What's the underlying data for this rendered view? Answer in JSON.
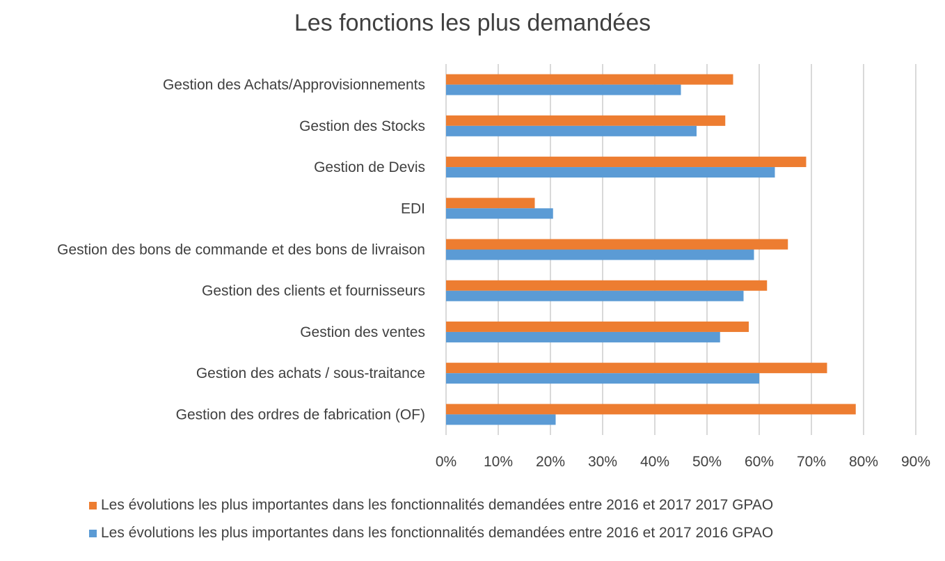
{
  "chart_data": {
    "type": "bar",
    "orientation": "horizontal",
    "title": "Les fonctions les plus demandées",
    "categories": [
      "Gestion des Achats/Approvisionnements",
      "Gestion des Stocks",
      "Gestion de Devis",
      "EDI",
      "Gestion des bons de commande et des bons de livraison",
      "Gestion des clients et fournisseurs",
      "Gestion des ventes",
      "Gestion des achats / sous-traitance",
      "Gestion des ordres de fabrication (OF)"
    ],
    "series": [
      {
        "name": "Les évolutions les plus importantes dans les fonctionnalités demandées entre 2016 et 2017  2017 GPAO",
        "color": "#ED7D31",
        "values": [
          55,
          53.5,
          69,
          17,
          65.5,
          61.5,
          58,
          73,
          78.5
        ]
      },
      {
        "name": "Les évolutions les plus importantes dans les fonctionnalités demandées entre 2016 et 2017  2016 GPAO",
        "color": "#5B9BD5",
        "values": [
          45,
          48,
          63,
          20.5,
          59,
          57,
          52.5,
          60,
          21
        ]
      }
    ],
    "xlim": [
      0,
      90
    ],
    "xticks": [
      "0%",
      "10%",
      "20%",
      "30%",
      "40%",
      "50%",
      "60%",
      "70%",
      "80%",
      "90%"
    ],
    "grid": true,
    "legend_position": "bottom"
  }
}
